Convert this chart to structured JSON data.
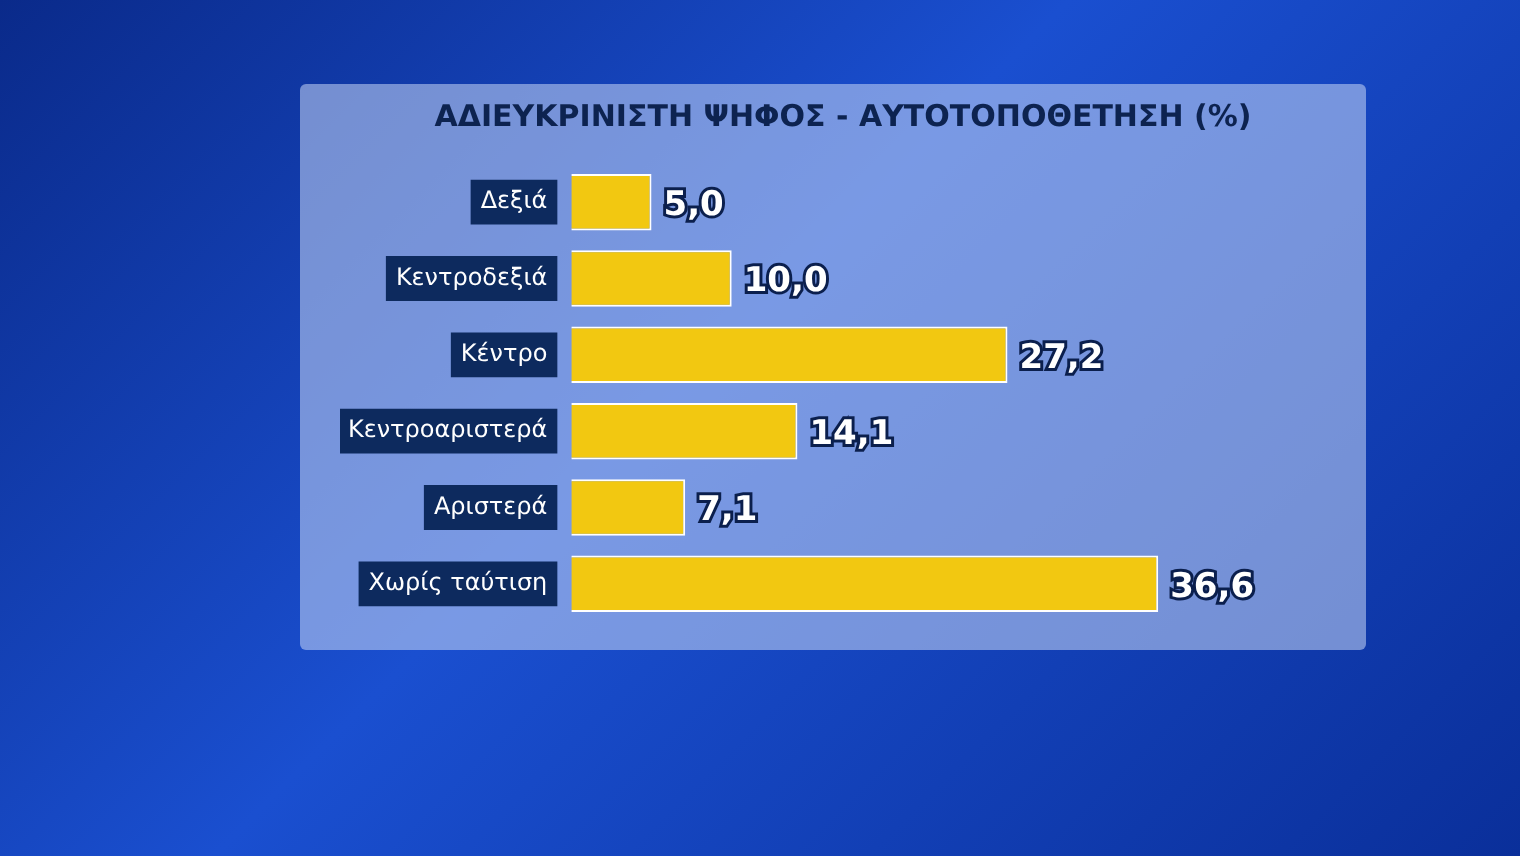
{
  "chart_data": {
    "type": "bar",
    "orientation": "horizontal",
    "title": "ΑΔΙΕΥΚΡΙΝΙΣΤΗ ΨΗΦΟΣ - ΑΥΤΟΤΟΠΟΘΕΤΗΣΗ (%)",
    "categories": [
      "Δεξιά",
      "Κεντροδεξιά",
      "Κέντρο",
      "Κεντροαριστερά",
      "Αριστερά",
      "Χωρίς ταύτιση"
    ],
    "values": [
      5.0,
      10.0,
      27.2,
      14.1,
      7.1,
      36.6
    ],
    "value_labels": [
      "5,0",
      "10,0",
      "27,2",
      "14,1",
      "7,1",
      "36,6"
    ],
    "color": "#f2c811",
    "grid": false,
    "legend": false
  }
}
